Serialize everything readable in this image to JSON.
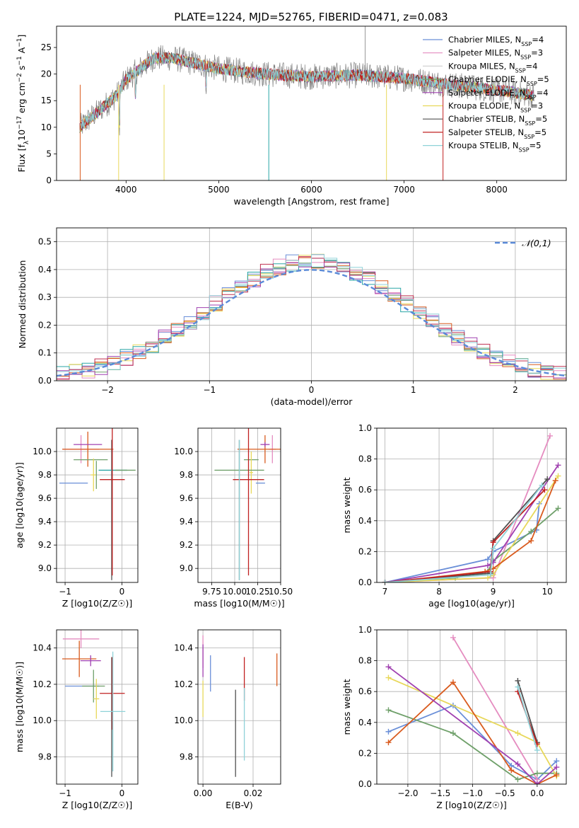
{
  "figure": {
    "title": "PLATE=1224, MJD=52765, FIBERID=0471, z=0.083"
  },
  "colors": [
    "#6a8fd8",
    "#e58cc0",
    "#6fa06a",
    "#e8d85a",
    "#2aa6a6",
    "#d95b1e",
    "#a040b0",
    "#c03050",
    "#8fd2d8"
  ],
  "chart_data": [
    {
      "id": "spectrum",
      "type": "line",
      "xlabel": "wavelength [Angstrom, rest frame]",
      "ylabel": "Flux [f_λ10^-17 erg cm^-2 s^-1 A^-1]",
      "xlim": [
        3250,
        8750
      ],
      "ylim": [
        0,
        29
      ],
      "xticks": [
        "4000",
        "5000",
        "6000",
        "7000",
        "8000"
      ],
      "yticks": [
        "0",
        "5",
        "10",
        "15",
        "20",
        "25"
      ],
      "legend_position": "top-right",
      "observed": {
        "color": "#808080",
        "envelope": [
          [
            3500,
            10
          ],
          [
            3700,
            13
          ],
          [
            3900,
            16
          ],
          [
            4000,
            19
          ],
          [
            4300,
            23
          ],
          [
            4500,
            23
          ],
          [
            5000,
            21
          ],
          [
            5500,
            20
          ],
          [
            6000,
            19.5
          ],
          [
            6500,
            19.8
          ],
          [
            7000,
            19.2
          ],
          [
            7500,
            18
          ],
          [
            8000,
            17
          ],
          [
            8400,
            16
          ]
        ]
      },
      "series": [
        {
          "name": "Chabrier MILES, N_SSP=4",
          "color": "#6a8fd8"
        },
        {
          "name": "Salpeter MILES, N_SSP=3",
          "color": "#e58cc0"
        },
        {
          "name": "Kroupa MILES, N_SSP=4",
          "color": "#d2d2d2"
        },
        {
          "name": "Chabrier ELODIE, N_SSP=5",
          "color": "#6fa06a"
        },
        {
          "name": "Salpeter ELODIE, N_SSP=4",
          "color": "#a040b0"
        },
        {
          "name": "Kroupa ELODIE, N_SSP=3",
          "color": "#e8d85a"
        },
        {
          "name": "Chabrier STELIB, N_SSP=5",
          "color": "#505050"
        },
        {
          "name": "Salpeter STELIB, N_SSP=5",
          "color": "#c02020"
        },
        {
          "name": "Kroupa STELIB, N_SSP=5",
          "color": "#8fd2d8"
        }
      ]
    },
    {
      "id": "residuals",
      "type": "line",
      "xlabel": "(data-model)/error",
      "ylabel": "Normed distribution",
      "xlim": [
        -2.5,
        2.5
      ],
      "ylim": [
        0,
        0.55
      ],
      "xticks": [
        "−2",
        "−1",
        "0",
        "1",
        "2"
      ],
      "yticks": [
        "0.0",
        "0.1",
        "0.2",
        "0.3",
        "0.4",
        "0.5"
      ],
      "legend_position": "top-right",
      "legend": "𝒩(0,1)",
      "normal_color": "#5a8ad8"
    },
    {
      "id": "age-vs-Z",
      "type": "scatter",
      "xlabel": "Z [log10(Z/Z☉)]",
      "ylabel": "age  [log10(age/yr)]",
      "xlim": [
        -1.15,
        0.28
      ],
      "ylim": [
        8.88,
        10.2
      ],
      "xticks": [
        "−1",
        "0"
      ],
      "yticks": [
        "9.0",
        "9.2",
        "9.4",
        "9.6",
        "9.8",
        "10.0"
      ],
      "points": [
        {
          "x": -0.85,
          "y": 9.73,
          "xerr": 0.25,
          "yerr": 0,
          "color": "#6a8fd8"
        },
        {
          "x": -0.72,
          "y": 10.02,
          "xerr": 0.32,
          "yerr": 0.12,
          "color": "#e58cc0"
        },
        {
          "x": -0.6,
          "y": 10.02,
          "xerr": 0.45,
          "yerr": 0.15,
          "color": "#d95b1e"
        },
        {
          "x": -0.6,
          "y": 10.06,
          "xerr": 0.25,
          "yerr": 0,
          "color": "#a040b0"
        },
        {
          "x": -0.55,
          "y": 9.93,
          "xerr": 0.3,
          "yerr": 0,
          "color": "#6fa06a"
        },
        {
          "x": -0.5,
          "y": 9.8,
          "xerr": 0.05,
          "yerr": 0.14,
          "color": "#e8d85a"
        },
        {
          "x": -0.45,
          "y": 9.8,
          "xerr": 0.0,
          "yerr": 0.12,
          "color": "#6fa06a"
        },
        {
          "x": -0.18,
          "y": 9.5,
          "xerr": 0,
          "yerr": 0.6,
          "color": "#505050"
        },
        {
          "x": -0.16,
          "y": 9.84,
          "xerr": 0.25,
          "yerr": 0,
          "color": "#2aa6a6"
        },
        {
          "x": -0.17,
          "y": 9.76,
          "xerr": 0.22,
          "yerr": 0.82,
          "color": "#c02020"
        },
        {
          "x": 0.06,
          "y": 9.84,
          "xerr": 0.18,
          "yerr": 0,
          "color": "#6fa06a"
        }
      ]
    },
    {
      "id": "age-vs-mass",
      "type": "scatter",
      "xlabel": "mass [log10(M/M☉)]",
      "ylabel": "",
      "xlim": [
        9.6,
        10.5
      ],
      "ylim": [
        8.88,
        10.2
      ],
      "xticks": [
        "9.75",
        "10.00",
        "10.25",
        "10.50"
      ],
      "yticks": [
        "9.0",
        "9.2",
        "9.4",
        "9.6",
        "9.8",
        "10.0"
      ],
      "points": [
        {
          "x": 10.28,
          "y": 9.73,
          "xerr": 0.05,
          "yerr": 0,
          "color": "#6a8fd8"
        },
        {
          "x": 10.41,
          "y": 10.02,
          "xerr": 0.04,
          "yerr": 0.12,
          "color": "#e58cc0"
        },
        {
          "x": 10.33,
          "y": 10.02,
          "xerr": 0.3,
          "yerr": 0.12,
          "color": "#d95b1e"
        },
        {
          "x": 10.33,
          "y": 10.06,
          "xerr": 0.05,
          "yerr": 0.02,
          "color": "#a040b0"
        },
        {
          "x": 10.18,
          "y": 9.93,
          "xerr": 0.08,
          "yerr": 0,
          "color": "#6fa06a"
        },
        {
          "x": 10.18,
          "y": 9.82,
          "xerr": 0.02,
          "yerr": 0.18,
          "color": "#e8d85a"
        },
        {
          "x": 10.05,
          "y": 9.5,
          "xerr": 0,
          "yerr": 0.6,
          "color": "#505050"
        },
        {
          "x": 10.05,
          "y": 9.84,
          "xerr": 0.27,
          "yerr": 0,
          "color": "#6fa06a"
        },
        {
          "x": 10.15,
          "y": 9.76,
          "xerr": 0.17,
          "yerr": 0.82,
          "color": "#c02020"
        },
        {
          "x": 10.05,
          "y": 9.5,
          "xerr": 0,
          "yerr": 0.6,
          "color": "#8fd2d8"
        }
      ]
    },
    {
      "id": "weight-vs-age",
      "type": "line",
      "xlabel": "age  [log10(age/yr)]",
      "ylabel": "mass weight",
      "xlim": [
        6.85,
        10.35
      ],
      "ylim": [
        0,
        1
      ],
      "xticks": [
        "7",
        "8",
        "9",
        "10"
      ],
      "yticks": [
        "0.0",
        "0.2",
        "0.4",
        "0.6",
        "0.8",
        "1.0"
      ],
      "series": [
        {
          "color": "#6a8fd8",
          "x": [
            7.0,
            8.9,
            9.0,
            9.8,
            9.85
          ],
          "y": [
            0.0,
            0.15,
            0.2,
            0.34,
            0.51
          ]
        },
        {
          "color": "#e58cc0",
          "x": [
            7.0,
            9.0,
            10.05
          ],
          "y": [
            0.0,
            0.03,
            0.95
          ]
        },
        {
          "color": "#6fa06a",
          "x": [
            7.0,
            8.3,
            8.9,
            9.0,
            9.7,
            10.2
          ],
          "y": [
            0.0,
            0.03,
            0.07,
            0.14,
            0.33,
            0.48
          ]
        },
        {
          "color": "#e8d85a",
          "x": [
            7.0,
            8.9,
            9.0,
            10.2
          ],
          "y": [
            0.0,
            0.03,
            0.05,
            0.69
          ]
        },
        {
          "color": "#d95b1e",
          "x": [
            7.0,
            8.85,
            9.0,
            9.7,
            10.15
          ],
          "y": [
            0.0,
            0.07,
            0.09,
            0.27,
            0.66
          ]
        },
        {
          "color": "#a040b0",
          "x": [
            7.0,
            8.9,
            9.0,
            10.2
          ],
          "y": [
            0.0,
            0.11,
            0.13,
            0.76
          ]
        },
        {
          "color": "#505050",
          "x": [
            7.0,
            8.95,
            9.0,
            10.0
          ],
          "y": [
            0.0,
            0.06,
            0.27,
            0.67
          ]
        },
        {
          "color": "#c02020",
          "x": [
            7.0,
            8.95,
            9.0,
            9.95
          ],
          "y": [
            0.0,
            0.07,
            0.26,
            0.6
          ]
        },
        {
          "color": "#8fd2d8",
          "x": [
            7.0,
            8.95,
            9.0,
            9.9
          ],
          "y": [
            0.0,
            0.05,
            0.22,
            0.63
          ]
        }
      ]
    },
    {
      "id": "mass-vs-Z",
      "type": "scatter",
      "xlabel": "Z [log10(Z/Z☉)]",
      "ylabel": "mass [log10(M/M☉)]",
      "xlim": [
        -1.15,
        0.28
      ],
      "ylim": [
        9.65,
        10.5
      ],
      "xticks": [
        "−1",
        "0"
      ],
      "yticks": [
        "9.8",
        "10.0",
        "10.2",
        "10.4"
      ],
      "points": [
        {
          "x": -0.72,
          "y": 10.45,
          "xerr": 0.32,
          "yerr": 0.05,
          "color": "#e58cc0"
        },
        {
          "x": -0.75,
          "y": 10.34,
          "xerr": 0.3,
          "yerr": 0.1,
          "color": "#d95b1e"
        },
        {
          "x": -0.55,
          "y": 10.33,
          "xerr": 0.18,
          "yerr": 0.03,
          "color": "#a040b0"
        },
        {
          "x": -0.7,
          "y": 10.19,
          "xerr": 0.3,
          "yerr": 0,
          "color": "#6a8fd8"
        },
        {
          "x": -0.5,
          "y": 10.19,
          "xerr": 0.2,
          "yerr": 0.09,
          "color": "#6fa06a"
        },
        {
          "x": -0.45,
          "y": 10.12,
          "xerr": 0.05,
          "yerr": 0.11,
          "color": "#e8d85a"
        },
        {
          "x": -0.18,
          "y": 10.02,
          "xerr": 0,
          "yerr": 0.33,
          "color": "#505050"
        },
        {
          "x": -0.17,
          "y": 10.15,
          "xerr": 0.22,
          "yerr": 0.2,
          "color": "#c02020"
        },
        {
          "x": -0.16,
          "y": 10.05,
          "xerr": 0.22,
          "yerr": 0.33,
          "color": "#8fd2d8"
        }
      ]
    },
    {
      "id": "mass-vs-ebv",
      "type": "scatter",
      "xlabel": "E(B-V)",
      "ylabel": "",
      "xlim": [
        -0.002,
        0.031
      ],
      "ylim": [
        9.65,
        10.5
      ],
      "xticks": [
        "0.00",
        "0.02"
      ],
      "yticks": [
        "9.8",
        "10.0",
        "10.2",
        "10.4"
      ],
      "points": [
        {
          "x": 0.0,
          "y": 10.38,
          "xerr": 0,
          "yerr": 0.09,
          "color": "#e58cc0"
        },
        {
          "x": 0.0,
          "y": 10.33,
          "xerr": 0,
          "yerr": 0.09,
          "color": "#a040b0"
        },
        {
          "x": 0.0,
          "y": 10.12,
          "xerr": 0,
          "yerr": 0.1,
          "color": "#e8d85a"
        },
        {
          "x": 0.003,
          "y": 10.26,
          "xerr": 0,
          "yerr": 0.1,
          "color": "#6a8fd8"
        },
        {
          "x": 0.013,
          "y": 9.93,
          "xerr": 0,
          "yerr": 0.24,
          "color": "#505050"
        },
        {
          "x": 0.0165,
          "y": 10.23,
          "xerr": 0,
          "yerr": 0.12,
          "color": "#c02020"
        },
        {
          "x": 0.0165,
          "y": 9.98,
          "xerr": 0,
          "yerr": 0.2,
          "color": "#8fd2d8"
        },
        {
          "x": 0.0295,
          "y": 10.28,
          "xerr": 0,
          "yerr": 0.09,
          "color": "#d95b1e"
        }
      ]
    },
    {
      "id": "weight-vs-Z",
      "type": "line",
      "xlabel": "Z [log10(Z/Z☉)]",
      "ylabel": "mass weight",
      "xlim": [
        -2.48,
        0.45
      ],
      "ylim": [
        0,
        1
      ],
      "xticks": [
        "−2.0",
        "−1.5",
        "−1.0",
        "−0.5",
        "0.0"
      ],
      "yticks": [
        "0.0",
        "0.2",
        "0.4",
        "0.6",
        "0.8",
        "1.0"
      ],
      "series": [
        {
          "color": "#6a8fd8",
          "x": [
            -2.3,
            -1.3,
            -0.4,
            0.0,
            0.3
          ],
          "y": [
            0.34,
            0.51,
            0.12,
            0.03,
            0.15
          ]
        },
        {
          "color": "#e58cc0",
          "x": [
            -1.3,
            0.0
          ],
          "y": [
            0.95,
            0.03
          ]
        },
        {
          "color": "#6fa06a",
          "x": [
            -2.3,
            -1.3,
            -0.3,
            0.0,
            0.3
          ],
          "y": [
            0.48,
            0.33,
            0.03,
            0.07,
            0.07
          ]
        },
        {
          "color": "#e8d85a",
          "x": [
            -2.3,
            -0.3,
            0.0,
            0.3
          ],
          "y": [
            0.69,
            0.33,
            0.27,
            0.05
          ]
        },
        {
          "color": "#d95b1e",
          "x": [
            -2.3,
            -1.3,
            -0.4,
            0.0,
            0.3
          ],
          "y": [
            0.27,
            0.66,
            0.09,
            0.0,
            0.06
          ]
        },
        {
          "color": "#a040b0",
          "x": [
            -2.3,
            -0.3,
            0.0,
            0.3
          ],
          "y": [
            0.76,
            0.13,
            0.0,
            0.11
          ]
        },
        {
          "color": "#505050",
          "x": [
            -0.3,
            0.0
          ],
          "y": [
            0.67,
            0.27
          ]
        },
        {
          "color": "#c02020",
          "x": [
            -0.3,
            0.0
          ],
          "y": [
            0.6,
            0.26
          ]
        },
        {
          "color": "#8fd2d8",
          "x": [
            -0.3,
            0.0
          ],
          "y": [
            0.63,
            0.22
          ]
        }
      ]
    }
  ]
}
